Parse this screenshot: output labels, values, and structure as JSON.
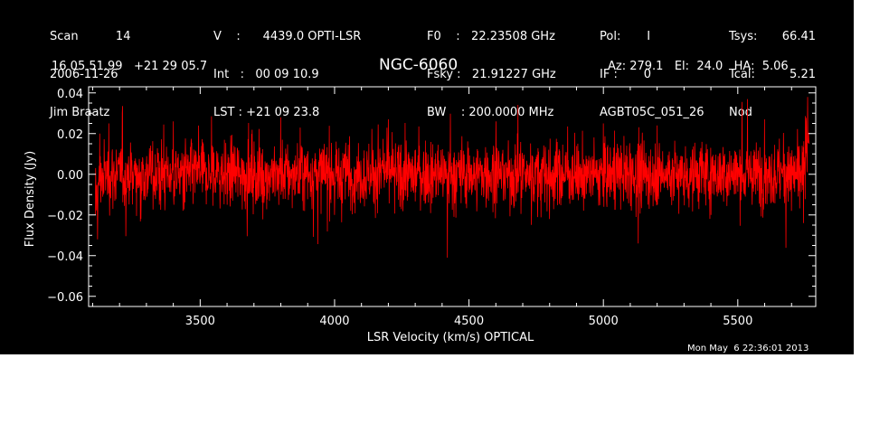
{
  "header": {
    "col1": [
      "Scan          14",
      "2006-11-26",
      "Jim Braatz"
    ],
    "col2": [
      "V    :      4439.0 OPTI-LSR",
      "Int   :   00 09 10.9",
      "LST : +21 09 23.8"
    ],
    "col3": [
      "F0    :   22.23508 GHz",
      "Fsky :   21.91227 GHz",
      "BW    : 200.0000 MHz"
    ],
    "col4": [
      "Pol:       I",
      "IF :       0",
      "AGBT05C_051_26"
    ],
    "col5": [
      "Tsys:",
      "Tcal:",
      "Nod"
    ],
    "col6": [
      "66.41",
      "5.21",
      ""
    ],
    "coords": "16 05 51.99   +21 29 05.7",
    "pointing": "Az: 279.1   El:  24.0   HA:  5.06",
    "timestamp": "Mon May  6 22:36:01 2013"
  },
  "colors": {
    "background": "#000000",
    "axes": "#ffffff",
    "trace": "#ff0000",
    "page": "#ffffff"
  },
  "chart_data": {
    "type": "line",
    "title": "NGC-6060",
    "xlabel": "LSR Velocity (km/s) OPTICAL",
    "ylabel": "Flux Density (Jy)",
    "xlim": [
      3085,
      5790
    ],
    "ylim": [
      -0.065,
      0.043
    ],
    "xticks": [
      3500,
      4000,
      4500,
      5000,
      5500
    ],
    "xtick_labels": [
      "3500",
      "4000",
      "4500",
      "5000",
      "5500"
    ],
    "yticks": [
      -0.06,
      -0.04,
      -0.02,
      0.0,
      0.02,
      0.04
    ],
    "ytick_labels": [
      "−0.06",
      "−0.04",
      "−0.02",
      "0.00",
      "0.02",
      "0.04"
    ],
    "grid": false,
    "legend": "none",
    "series": [
      {
        "x_range": [
          3110,
          5765
        ],
        "rms_noise": 0.008,
        "x": [
          3110,
          3118,
          3126,
          3140,
          3160,
          3190,
          3210,
          3280,
          3400,
          3600,
          3800,
          4000,
          4200,
          4420,
          4600,
          4800,
          5000,
          5130,
          5200,
          5400,
          5600,
          5700,
          5745,
          5755,
          5760,
          5765
        ],
        "values": [
          -0.02,
          -0.032,
          0.02,
          -0.01,
          0.025,
          0.0,
          0.03,
          -0.022,
          0.026,
          -0.015,
          0.028,
          -0.02,
          0.027,
          -0.041,
          0.026,
          -0.022,
          0.025,
          -0.034,
          0.024,
          -0.02,
          0.027,
          -0.018,
          -0.024,
          0.026,
          0.038,
          0.015
        ]
      }
    ]
  }
}
